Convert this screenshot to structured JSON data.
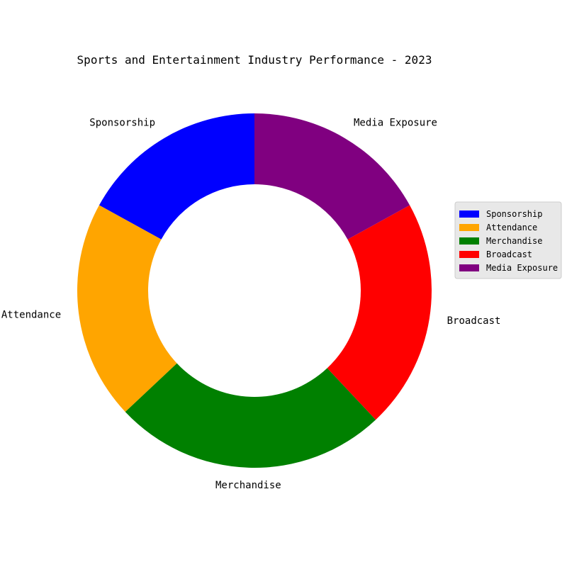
{
  "chart_data": {
    "type": "pie",
    "style": "donut",
    "title": "Sports and Entertainment Industry Performance - 2023",
    "categories": [
      "Sponsorship",
      "Attendance",
      "Merchandise",
      "Broadcast",
      "Media Exposure"
    ],
    "values": [
      17,
      20,
      25,
      21,
      17
    ],
    "unit": "percent",
    "colors": [
      "#0000ff",
      "#ffa500",
      "#008000",
      "#ff0000",
      "#800080"
    ],
    "start_angle_deg": 90,
    "direction": "counterclockwise",
    "hole_fraction": 0.6,
    "legend": {
      "placement": "center-right",
      "entries": [
        "Sponsorship",
        "Attendance",
        "Merchandise",
        "Broadcast",
        "Media Exposure"
      ]
    }
  }
}
